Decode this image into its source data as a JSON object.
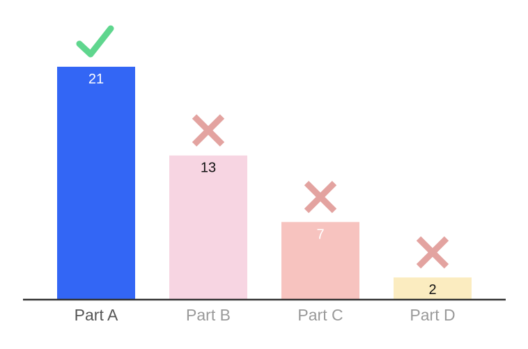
{
  "chart_data": {
    "type": "bar",
    "categories": [
      "Part A",
      "Part B",
      "Part C",
      "Part D"
    ],
    "values": [
      21,
      13,
      7,
      2
    ],
    "value_labels": [
      "21",
      "13",
      "7",
      "2"
    ],
    "bar_colors": [
      "#3366f5",
      "#f7d5e2",
      "#f7c3bf",
      "#fbecc0"
    ],
    "value_label_colors": [
      "#ffffff",
      "#111111",
      "#ffffff",
      "#111111"
    ],
    "category_label_colors": [
      "#555555",
      "#999999",
      "#999999",
      "#999999"
    ],
    "markers": [
      "check-icon",
      "cross-icon",
      "cross-icon",
      "cross-icon"
    ],
    "marker_colors": {
      "check": "#5fd68e",
      "cross": "#e3a3a0"
    },
    "axis_color": "#333333",
    "ylim": [
      0,
      21
    ],
    "grid": false,
    "title": "",
    "xlabel": "",
    "ylabel": ""
  }
}
